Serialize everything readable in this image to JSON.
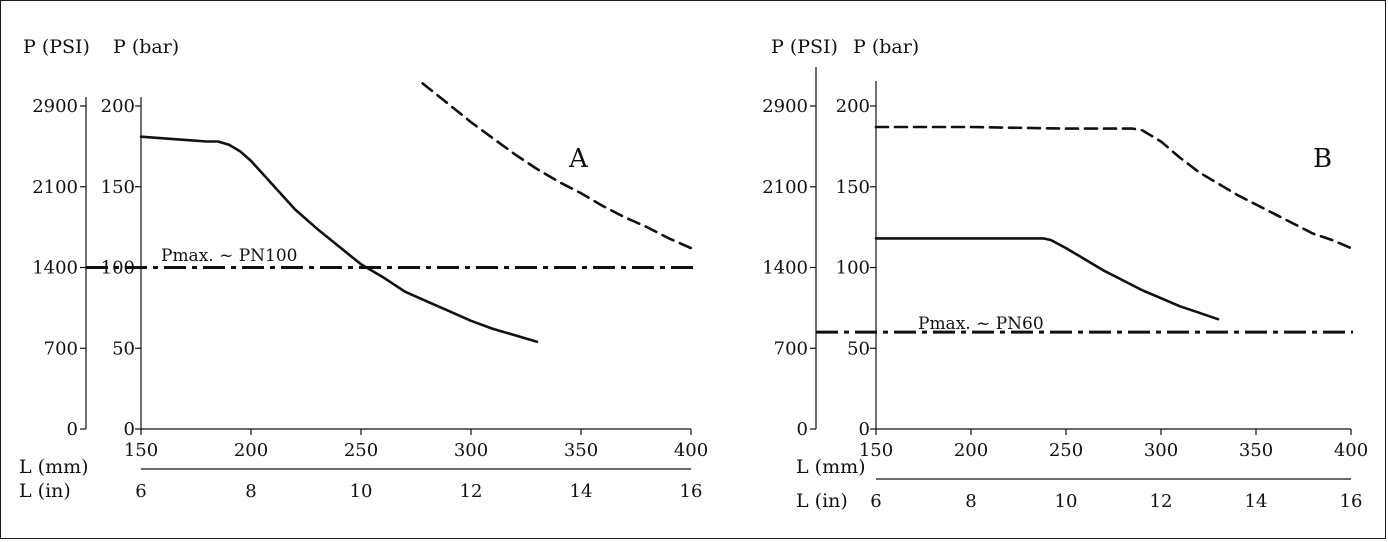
{
  "chart_data": [
    {
      "type": "line",
      "panel_label": "A",
      "y_title_psi": "P (PSI)",
      "y_title_bar": "P (bar)",
      "x_title_mm": "L (mm)",
      "x_title_in": "L (in)",
      "psi_ticks": [
        "0",
        "700",
        "1400",
        "2100",
        "2900"
      ],
      "bar_ticks": [
        "0",
        "50",
        "100",
        "150",
        "200"
      ],
      "mm_ticks": [
        "150",
        "200",
        "250",
        "300",
        "350",
        "400"
      ],
      "in_ticks": [
        "6",
        "8",
        "10",
        "12",
        "14",
        "16"
      ],
      "xlim_mm": [
        150,
        400
      ],
      "ylim_bar": [
        0,
        200
      ],
      "pmax_label": "Pmax. ~ PN100",
      "pmax_bar": 100,
      "series": [
        {
          "style": "solid",
          "x": [
            150,
            160,
            170,
            180,
            185,
            190,
            195,
            200,
            210,
            220,
            230,
            240,
            250,
            260,
            270,
            280,
            290,
            300,
            310,
            320,
            330
          ],
          "y": [
            181,
            180,
            179,
            178,
            178,
            176,
            172,
            166,
            151,
            136,
            124,
            113,
            102,
            94,
            85,
            79,
            73,
            67,
            62,
            58,
            54
          ]
        },
        {
          "style": "dashed",
          "x": [
            278,
            290,
            300,
            310,
            320,
            330,
            340,
            350,
            360,
            370,
            380,
            390,
            400
          ],
          "y": [
            214,
            201,
            190,
            180,
            170,
            161,
            153,
            146,
            138,
            131,
            125,
            118,
            112
          ]
        }
      ]
    },
    {
      "type": "line",
      "panel_label": "B",
      "y_title_psi": "P (PSI)",
      "y_title_bar": "P (bar)",
      "x_title_mm": "L (mm)",
      "x_title_in": "L (in)",
      "psi_ticks": [
        "0",
        "700",
        "1400",
        "2100",
        "2900"
      ],
      "bar_ticks": [
        "0",
        "50",
        "100",
        "150",
        "200"
      ],
      "mm_ticks": [
        "150",
        "200",
        "250",
        "300",
        "350",
        "400"
      ],
      "in_ticks": [
        "6",
        "8",
        "10",
        "12",
        "14",
        "16"
      ],
      "xlim_mm": [
        150,
        400
      ],
      "ylim_bar": [
        0,
        200
      ],
      "pmax_label": "Pmax. ~ PN60",
      "pmax_bar": 60,
      "series": [
        {
          "style": "solid",
          "x": [
            150,
            200,
            230,
            238,
            242,
            250,
            260,
            270,
            280,
            290,
            300,
            310,
            320,
            330
          ],
          "y": [
            118,
            118,
            118,
            118,
            117,
            112,
            105,
            98,
            92,
            86,
            81,
            76,
            72,
            68
          ]
        },
        {
          "style": "dashed",
          "x": [
            150,
            200,
            250,
            285,
            290,
            300,
            310,
            320,
            330,
            340,
            350,
            360,
            370,
            380,
            390,
            400
          ],
          "y": [
            187,
            187,
            186,
            186,
            185,
            178,
            168,
            159,
            152,
            145,
            139,
            133,
            127,
            121,
            117,
            112
          ]
        }
      ]
    }
  ]
}
